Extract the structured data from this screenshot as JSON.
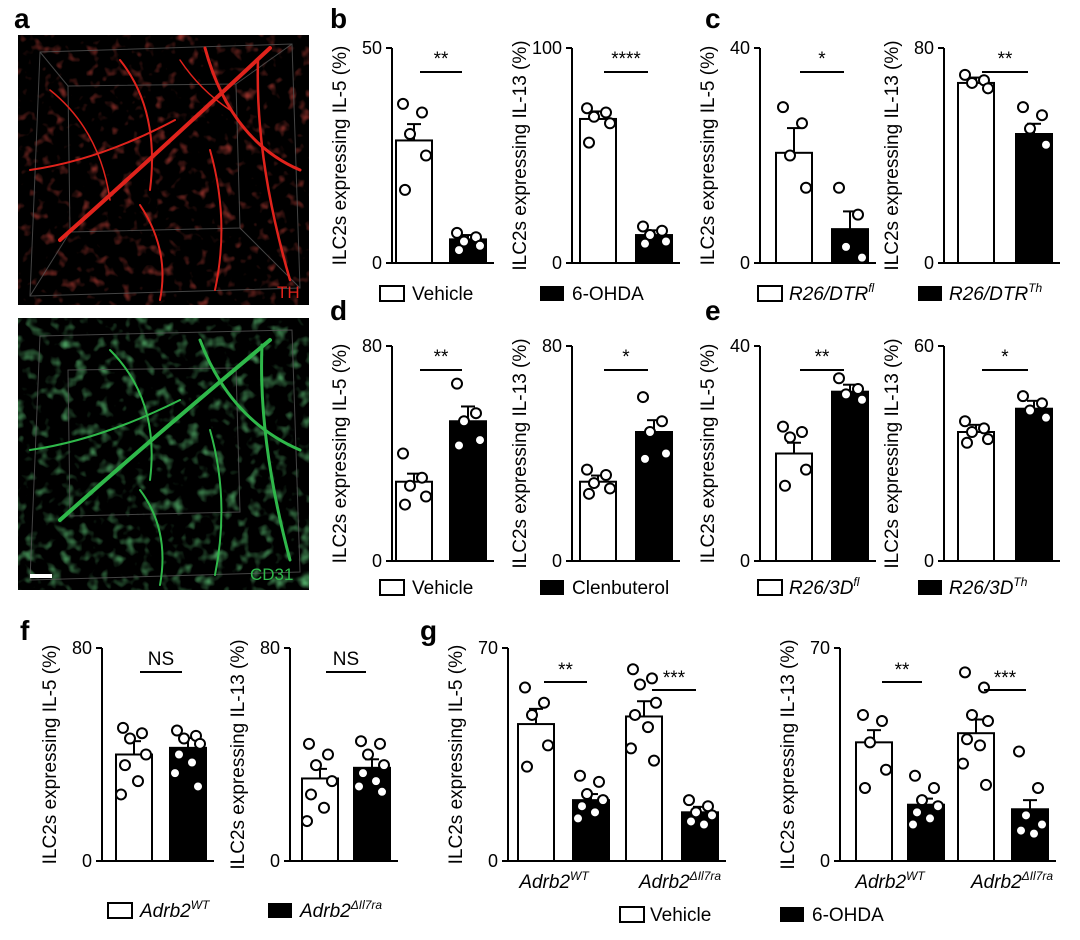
{
  "panel_labels": {
    "a": "a",
    "b": "b",
    "c": "c",
    "d": "d",
    "e": "e",
    "f": "f",
    "g": "g"
  },
  "images": {
    "top": {
      "label": "TH",
      "color": "#e0231c"
    },
    "bottom": {
      "label": "CD31",
      "color": "#2fb84a"
    }
  },
  "legends": {
    "b": {
      "open": "Vehicle",
      "filled": "6-OHDA"
    },
    "c": {
      "open_base": "R26/DTR",
      "open_sup": "fl",
      "filled_base": "R26/DTR",
      "filled_sup": "Th"
    },
    "d": {
      "open": "Vehicle",
      "filled": "Clenbuterol"
    },
    "e": {
      "open_base": "R26/3D",
      "open_sup": "fl",
      "filled_base": "R26/3D",
      "filled_sup": "Th"
    },
    "f": {
      "open_base": "Adrb2",
      "open_sup": "WT",
      "filled_base": "Adrb2",
      "filled_sup": "ΔIl7ra"
    },
    "g": {
      "open": "Vehicle",
      "filled": "6-OHDA"
    }
  },
  "group_labels": {
    "g1": {
      "base": "Adrb2",
      "sup": "WT"
    },
    "g2": {
      "base": "Adrb2",
      "sup": "ΔIl7ra"
    }
  },
  "colors": {
    "open_bar": "#ffffff",
    "filled_bar": "#000000",
    "axis": "#000000"
  },
  "chart_data": [
    {
      "id": "b1",
      "type": "bar",
      "ylabel": "ILC2s expressing IL-5 (%)",
      "ylim": [
        0,
        50
      ],
      "yticks": [
        "0",
        "50"
      ],
      "categories": [
        "Vehicle",
        "6-OHDA"
      ],
      "values": [
        28.5,
        5.5
      ],
      "sem": [
        3.8,
        1.0
      ],
      "points": [
        [
          37,
          35,
          30,
          25,
          17
        ],
        [
          7,
          6,
          5,
          4,
          3
        ]
      ],
      "significance": [
        {
          "between": [
            0,
            1
          ],
          "label": "**"
        }
      ]
    },
    {
      "id": "b2",
      "type": "bar",
      "ylabel": "ILC2s expressing IL-13 (%)",
      "ylim": [
        0,
        100
      ],
      "yticks": [
        "0",
        "100"
      ],
      "categories": [
        "Vehicle",
        "6-OHDA"
      ],
      "values": [
        67,
        13
      ],
      "sem": [
        3.5,
        2.2
      ],
      "points": [
        [
          72,
          70,
          68,
          65,
          56
        ],
        [
          17,
          15,
          13,
          10,
          9
        ]
      ],
      "significance": [
        {
          "between": [
            0,
            1
          ],
          "label": "****"
        }
      ]
    },
    {
      "id": "c1",
      "type": "bar",
      "ylabel": "ILC2s expressing IL-5 (%)",
      "ylim": [
        0,
        40
      ],
      "yticks": [
        "0",
        "40"
      ],
      "categories": [
        "R26/DTR fl",
        "R26/DTR Th"
      ],
      "values": [
        20.5,
        6.3
      ],
      "sem": [
        4.6,
        3.3
      ],
      "points": [
        [
          29,
          26,
          20,
          14
        ],
        [
          14,
          9,
          3,
          1
        ]
      ],
      "significance": [
        {
          "between": [
            0,
            1
          ],
          "label": "*"
        }
      ]
    },
    {
      "id": "c2",
      "type": "bar",
      "ylabel": "ILC2s expressing IL-13 (%)",
      "ylim": [
        0,
        80
      ],
      "yticks": [
        "0",
        "80"
      ],
      "categories": [
        "R26/DTR fl",
        "R26/DTR Th"
      ],
      "values": [
        67,
        48
      ],
      "sem": [
        2.0,
        3.8
      ],
      "points": [
        [
          70,
          68,
          67,
          65
        ],
        [
          58,
          55,
          50,
          44
        ]
      ],
      "significance": [
        {
          "between": [
            0,
            1
          ],
          "label": "**"
        }
      ]
    },
    {
      "id": "d1",
      "type": "bar",
      "ylabel": "ILC2s expressing IL-5 (%)",
      "ylim": [
        0,
        80
      ],
      "yticks": [
        "0",
        "80"
      ],
      "categories": [
        "Vehicle",
        "Clenbuterol"
      ],
      "values": [
        29.5,
        52
      ],
      "sem": [
        3.0,
        5.5
      ],
      "points": [
        [
          40,
          31,
          28,
          24,
          21
        ],
        [
          66,
          55,
          52,
          45,
          43
        ]
      ],
      "significance": [
        {
          "between": [
            0,
            1
          ],
          "label": "**"
        }
      ]
    },
    {
      "id": "d2",
      "type": "bar",
      "ylabel": "ILC2s expressing IL-13 (%)",
      "ylim": [
        0,
        80
      ],
      "yticks": [
        "0",
        "80"
      ],
      "categories": [
        "Vehicle",
        "Clenbuterol"
      ],
      "values": [
        29.5,
        48
      ],
      "sem": [
        2.3,
        4.4
      ],
      "points": [
        [
          34,
          32,
          29,
          27,
          25
        ],
        [
          61,
          52,
          48,
          40,
          38
        ]
      ],
      "significance": [
        {
          "between": [
            0,
            1
          ],
          "label": "*"
        }
      ]
    },
    {
      "id": "e1",
      "type": "bar",
      "ylabel": "ILC2s expressing IL-5 (%)",
      "ylim": [
        0,
        40
      ],
      "yticks": [
        "0",
        "40"
      ],
      "categories": [
        "R26/3D fl",
        "R26/3D Th"
      ],
      "values": [
        20,
        31.5
      ],
      "sem": [
        2.0,
        1.3
      ],
      "points": [
        [
          25,
          24,
          23,
          17,
          14
        ],
        [
          34,
          32,
          31,
          30
        ]
      ],
      "significance": [
        {
          "between": [
            0,
            1
          ],
          "label": "**"
        }
      ]
    },
    {
      "id": "e2",
      "type": "bar",
      "ylabel": "ILC2s expressing IL-13 (%)",
      "ylim": [
        0,
        60
      ],
      "yticks": [
        "0",
        "60"
      ],
      "categories": [
        "R26/3D fl",
        "R26/3D Th"
      ],
      "values": [
        36,
        42.5
      ],
      "sem": [
        2.0,
        2.2
      ],
      "points": [
        [
          39,
          37,
          36,
          34,
          33
        ],
        [
          46,
          44,
          42,
          40
        ]
      ],
      "significance": [
        {
          "between": [
            0,
            1
          ],
          "label": "*"
        }
      ]
    },
    {
      "id": "f1",
      "type": "bar",
      "ylabel": "ILC2s expressing IL-5 (%)",
      "ylim": [
        0,
        80
      ],
      "yticks": [
        "0",
        "80"
      ],
      "categories": [
        "Adrb2 WT",
        "Adrb2 ΔIl7ra"
      ],
      "values": [
        40,
        42.5
      ],
      "sem": [
        5.0,
        3.7
      ],
      "points": [
        [
          50,
          48,
          46,
          40,
          36,
          30,
          25
        ],
        [
          49,
          47,
          46,
          44,
          40,
          37,
          33,
          28
        ]
      ],
      "significance": [
        {
          "between": [
            0,
            1
          ],
          "label": "NS"
        }
      ]
    },
    {
      "id": "f2",
      "type": "bar",
      "ylabel": "ILC2s expressing IL-13 (%)",
      "ylim": [
        0,
        80
      ],
      "yticks": [
        "0",
        "80"
      ],
      "categories": [
        "Adrb2 WT",
        "Adrb2 ΔIl7ra"
      ],
      "values": [
        31,
        35
      ],
      "sem": [
        3.6,
        3.2
      ],
      "points": [
        [
          44,
          40,
          36,
          30,
          25,
          20,
          15
        ],
        [
          45,
          44,
          40,
          36,
          33,
          30,
          28,
          26
        ]
      ],
      "significance": [
        {
          "between": [
            0,
            1
          ],
          "label": "NS"
        }
      ]
    },
    {
      "id": "g1",
      "type": "bar",
      "ylabel": "ILC2s expressing IL-5 (%)",
      "ylim": [
        0,
        70
      ],
      "yticks": [
        "0",
        "70"
      ],
      "groups": [
        "Adrb2 WT",
        "Adrb2 ΔIl7ra"
      ],
      "series": [
        {
          "name": "Vehicle",
          "values": [
            45,
            47.5
          ],
          "sem": [
            5.0,
            5.0
          ]
        },
        {
          "name": "6-OHDA",
          "values": [
            20,
            16
          ],
          "sem": [
            2.0,
            1.8
          ]
        }
      ],
      "points": [
        [
          [
            57,
            52,
            48,
            38,
            31
          ],
          [
            28,
            26,
            22,
            20,
            18,
            16,
            14
          ]
        ],
        [
          [
            63,
            60,
            58,
            52,
            48,
            44,
            37,
            33
          ],
          [
            20,
            18,
            16,
            15,
            13,
            12
          ]
        ]
      ],
      "significance": [
        {
          "group": 0,
          "label": "**"
        },
        {
          "group": 1,
          "label": "***"
        }
      ]
    },
    {
      "id": "g2",
      "type": "bar",
      "ylabel": "ILC2s expressing IL-13 (%)",
      "ylim": [
        0,
        70
      ],
      "yticks": [
        "0",
        "70"
      ],
      "groups": [
        "Adrb2 WT",
        "Adrb2 ΔIl7ra"
      ],
      "series": [
        {
          "name": "Vehicle",
          "values": [
            39,
            42
          ],
          "sem": [
            4.0,
            4.5
          ]
        },
        {
          "name": "6-OHDA",
          "values": [
            18.5,
            17
          ],
          "sem": [
            2.0,
            3.0
          ]
        }
      ],
      "points": [
        [
          [
            48,
            46,
            39,
            30,
            24
          ],
          [
            28,
            24,
            20,
            18,
            16,
            14,
            12
          ]
        ],
        [
          [
            62,
            57,
            48,
            46,
            40,
            38,
            32,
            25
          ],
          [
            36,
            24,
            15,
            12,
            10,
            9
          ]
        ]
      ],
      "significance": [
        {
          "group": 0,
          "label": "**"
        },
        {
          "group": 1,
          "label": "***"
        }
      ]
    }
  ]
}
